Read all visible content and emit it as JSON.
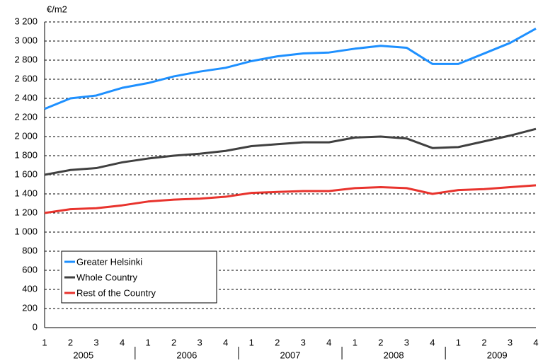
{
  "chart_data": {
    "type": "line",
    "y_unit": "€/m2",
    "categories": [
      "1",
      "2",
      "3",
      "4",
      "1",
      "2",
      "3",
      "4",
      "1",
      "2",
      "3",
      "4",
      "1",
      "2",
      "3",
      "4",
      "1",
      "2",
      "3",
      "4"
    ],
    "x_groups": [
      "2005",
      "2006",
      "2007",
      "2008",
      "2009"
    ],
    "series": [
      {
        "name": "Greater Helsinki",
        "color": "#1e90ff",
        "values": [
          2290,
          2400,
          2430,
          2510,
          2560,
          2630,
          2680,
          2720,
          2790,
          2840,
          2870,
          2880,
          2920,
          2950,
          2930,
          2760,
          2760,
          2870,
          2980,
          3130
        ]
      },
      {
        "name": "Whole Country",
        "color": "#404040",
        "values": [
          1600,
          1650,
          1670,
          1730,
          1770,
          1800,
          1820,
          1850,
          1900,
          1920,
          1940,
          1940,
          1990,
          2000,
          1980,
          1880,
          1890,
          1950,
          2010,
          2080
        ]
      },
      {
        "name": "Rest of the Country",
        "color": "#e8332d",
        "values": [
          1200,
          1240,
          1250,
          1280,
          1320,
          1340,
          1350,
          1370,
          1410,
          1420,
          1430,
          1430,
          1460,
          1470,
          1460,
          1400,
          1440,
          1450,
          1470,
          1490
        ]
      }
    ],
    "ylim": [
      0,
      3200
    ],
    "yticks": [
      0,
      200,
      400,
      600,
      800,
      {
        "value": 1000,
        "label": "1 000"
      },
      {
        "value": 1200,
        "label": "1 200"
      },
      {
        "value": 1400,
        "label": "1 400"
      },
      {
        "value": 1600,
        "label": "1 600"
      },
      {
        "value": 1800,
        "label": "1 800"
      },
      {
        "value": 2000,
        "label": "2 000"
      },
      {
        "value": 2200,
        "label": "2 200"
      },
      {
        "value": 2400,
        "label": "2 400"
      },
      {
        "value": 2600,
        "label": "2 600"
      },
      {
        "value": 2800,
        "label": "2 800"
      },
      {
        "value": 3000,
        "label": "3 000"
      },
      {
        "value": 3200,
        "label": "3 200"
      }
    ],
    "grid": true
  }
}
